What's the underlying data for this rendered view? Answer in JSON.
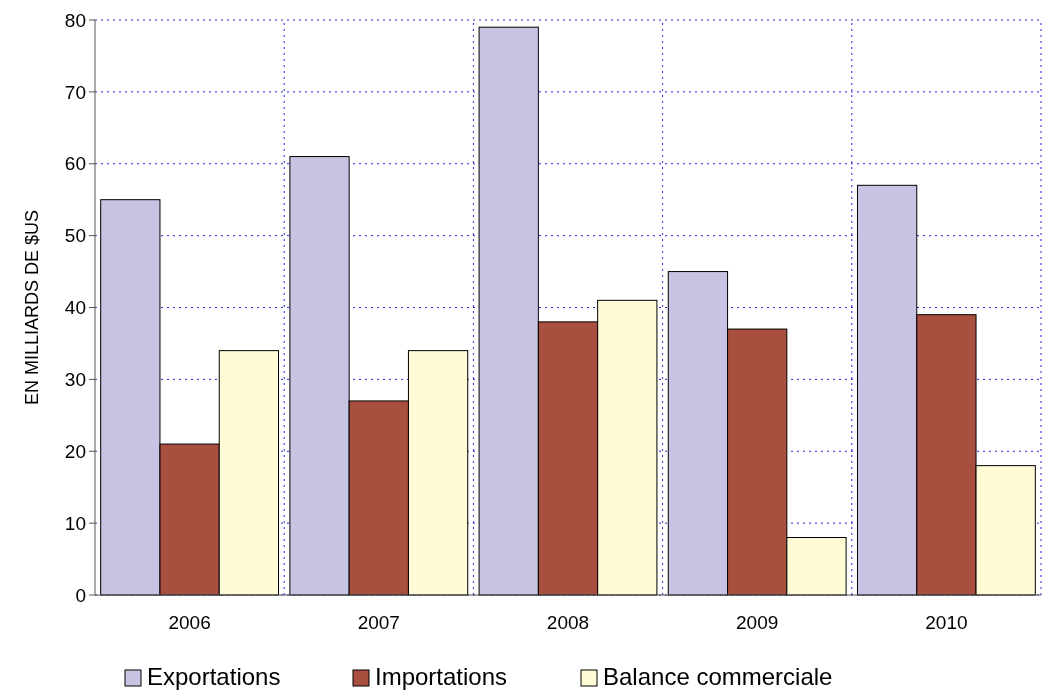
{
  "chart_data": {
    "type": "bar",
    "ylabel": "EN MILLIARDS DE $US",
    "categories": [
      "2006",
      "2007",
      "2008",
      "2009",
      "2010"
    ],
    "series": [
      {
        "name": "Exportations",
        "color": "#c6c4e2",
        "values": [
          55,
          61,
          79,
          45,
          57
        ]
      },
      {
        "name": "Importations",
        "color": "#a94f40",
        "values": [
          21,
          27,
          38,
          37,
          39
        ]
      },
      {
        "name": "Balance commerciale",
        "color": "#fffbd4",
        "values": [
          34,
          34,
          41,
          8,
          18
        ]
      }
    ],
    "ylim": [
      0,
      80
    ],
    "yticks": [
      0,
      10,
      20,
      30,
      40,
      50,
      60,
      70,
      80
    ],
    "grid": true,
    "legend": "bottom"
  }
}
